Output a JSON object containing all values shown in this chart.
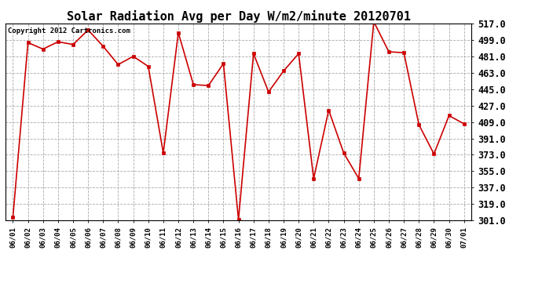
{
  "title": "Solar Radiation Avg per Day W/m2/minute 20120701",
  "copyright_text": "Copyright 2012 Cartronics.com",
  "dates": [
    "06/01",
    "06/02",
    "06/03",
    "06/04",
    "06/05",
    "06/06",
    "06/07",
    "06/08",
    "06/09",
    "06/10",
    "06/11",
    "06/12",
    "06/13",
    "06/14",
    "06/15",
    "06/16",
    "06/17",
    "06/18",
    "06/19",
    "06/20",
    "06/21",
    "06/22",
    "06/23",
    "06/24",
    "06/25",
    "06/26",
    "06/27",
    "06/28",
    "06/29",
    "06/30",
    "07/01"
  ],
  "values": [
    305,
    496,
    489,
    497,
    494,
    510,
    492,
    472,
    481,
    470,
    375,
    507,
    450,
    449,
    473,
    302,
    484,
    442,
    465,
    484,
    347,
    422,
    375,
    347,
    519,
    486,
    485,
    406,
    374,
    416,
    407
  ],
  "line_color": "#cc0000",
  "marker_color": "#cc0000",
  "background_color": "#ffffff",
  "grid_color": "#aaaaaa",
  "ylim_min": 301.0,
  "ylim_max": 517.0,
  "yticks": [
    301.0,
    319.0,
    337.0,
    355.0,
    373.0,
    391.0,
    409.0,
    427.0,
    445.0,
    463.0,
    481.0,
    499.0,
    517.0
  ],
  "title_fontsize": 11,
  "copyright_fontsize": 6.5,
  "tick_fontsize": 6.5,
  "ytick_fontsize": 8.5
}
